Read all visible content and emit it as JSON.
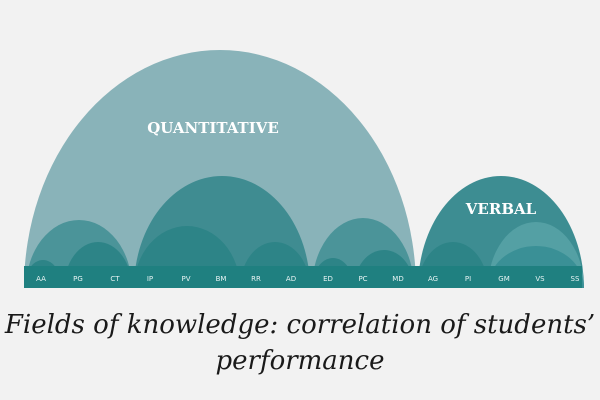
{
  "diagram": {
    "groups": [
      {
        "label": "QUANTITATIVE",
        "color": "#89b3b9"
      },
      {
        "label": "VERBAL",
        "color": "#3d8d92"
      }
    ],
    "fields": [
      "AA",
      "PG",
      "CT",
      "IP",
      "PV",
      "BM",
      "RR",
      "AD",
      "ED",
      "PC",
      "MD",
      "AG",
      "PI",
      "GM",
      "VS",
      "SS"
    ],
    "caption": {
      "line1": "Fields of knowledge: correlation of students’",
      "line2": "performance"
    }
  }
}
